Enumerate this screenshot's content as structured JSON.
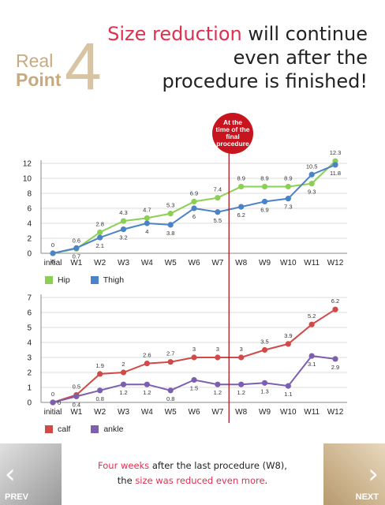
{
  "header": {
    "real": "Real",
    "point": "Point",
    "number": "4",
    "headline_highlight": "Size reduction",
    "headline_rest1": " will continue",
    "headline_line2": "even after the",
    "headline_line3": "procedure is finished!"
  },
  "callout": {
    "line1": "At the",
    "line2": "time of the",
    "line3": "final",
    "line4": "procedure"
  },
  "chart_data": [
    {
      "type": "line",
      "categories": [
        "initial",
        "W1",
        "W2",
        "W3",
        "W4",
        "W5",
        "W6",
        "W7",
        "W8",
        "W9",
        "W10",
        "W11",
        "W12"
      ],
      "ylim": [
        0,
        12
      ],
      "yticks": [
        0,
        2,
        4,
        6,
        8,
        10,
        12
      ],
      "grid": true,
      "legend_position": "bottom-left",
      "series": [
        {
          "name": "Hip",
          "color": "#8ccf55",
          "values": [
            0,
            0.6,
            2.8,
            4.3,
            4.7,
            5.3,
            6.9,
            7.4,
            8.9,
            8.9,
            8.9,
            9.3,
            12.3
          ],
          "label_pos": [
            "above",
            "above",
            "above",
            "above",
            "above",
            "above",
            "above",
            "above",
            "above",
            "above",
            "above",
            "below",
            "above"
          ]
        },
        {
          "name": "Thigh",
          "color": "#4a83c6",
          "values": [
            0,
            0.7,
            2.1,
            3.2,
            4,
            3.8,
            6,
            5.5,
            6.2,
            6.9,
            7.3,
            10.5,
            11.8
          ],
          "label_pos": [
            "below",
            "below",
            "below",
            "below",
            "below",
            "below",
            "below",
            "below",
            "below",
            "below",
            "below",
            "above",
            "below"
          ]
        }
      ]
    },
    {
      "type": "line",
      "categories": [
        "initial",
        "W1",
        "W2",
        "W3",
        "W4",
        "W5",
        "W6",
        "W7",
        "W8",
        "W9",
        "W10",
        "W11",
        "W12"
      ],
      "ylim": [
        0,
        7
      ],
      "yticks": [
        0,
        1,
        2,
        3,
        4,
        5,
        6,
        7
      ],
      "grid": true,
      "legend_position": "bottom-left",
      "series": [
        {
          "name": "calf",
          "color": "#cf4a48",
          "values": [
            0,
            0.5,
            1.9,
            2,
            2.6,
            2.7,
            3,
            3,
            3,
            3.5,
            3.9,
            5.2,
            6.2
          ],
          "label_pos": [
            "above",
            "above",
            "above",
            "above",
            "above",
            "above",
            "above",
            "above",
            "above",
            "above",
            "above",
            "above",
            "above"
          ]
        },
        {
          "name": "ankle",
          "color": "#7d5fb0",
          "values": [
            0,
            0.4,
            0.8,
            1.2,
            1.2,
            0.8,
            1.5,
            1.2,
            1.2,
            1.3,
            1.1,
            3.1,
            2.9
          ],
          "label_pos": [
            "right",
            "below",
            "below",
            "below",
            "below",
            "below",
            "below",
            "below",
            "below",
            "below",
            "below",
            "below",
            "below"
          ]
        }
      ]
    }
  ],
  "note": {
    "hl1": "Four weeks",
    "text1": " after the last procedure (W8),",
    "text2a": "the ",
    "hl2": "size was reduced even more",
    "text2b": "."
  },
  "nav": {
    "prev": "PREV",
    "next": "NEXT"
  }
}
